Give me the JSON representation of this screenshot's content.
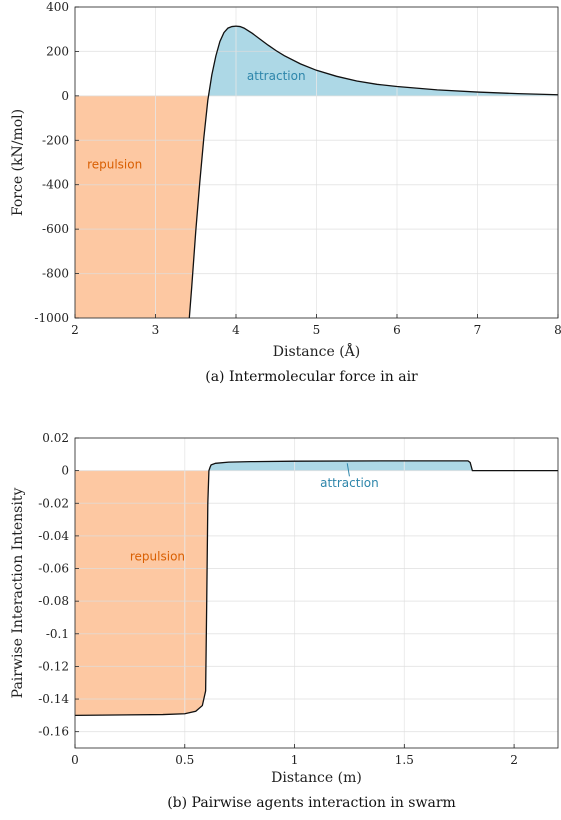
{
  "colors": {
    "repulsion_fill": "#fdc8a2",
    "attraction_fill": "#add8e6",
    "repulsion_text": "#d95f02",
    "attraction_text": "#2e86ab",
    "curve": "#111111",
    "grid": "#dddddd"
  },
  "chart_data": [
    {
      "type": "area",
      "caption": "(a) Intermolecular force in air",
      "xlabel": "Distance (Å)",
      "ylabel": "Force (kN/mol)",
      "xlim": [
        2,
        8
      ],
      "ylim": [
        -1000,
        400
      ],
      "xticks": [
        2,
        3,
        4,
        5,
        6,
        7,
        8
      ],
      "yticks": [
        400,
        200,
        0,
        -200,
        -400,
        -600,
        -800,
        -1000
      ],
      "grid": true,
      "regions": {
        "repulsion": "repulsion",
        "attraction": "attraction"
      },
      "series": [
        {
          "x": [
            3.42,
            3.45,
            3.5,
            3.55,
            3.6,
            3.65,
            3.7,
            3.75,
            3.8,
            3.85,
            3.9,
            3.95,
            4.0,
            4.05,
            4.1,
            4.2,
            4.3,
            4.4,
            4.5,
            4.6,
            4.8,
            5.0,
            5.25,
            5.5,
            5.75,
            6.0,
            6.5,
            7.0,
            7.5,
            8.0
          ],
          "y": [
            -1000,
            -860,
            -610,
            -390,
            -190,
            -20,
            95,
            180,
            245,
            285,
            305,
            312,
            314,
            312,
            305,
            282,
            255,
            228,
            203,
            181,
            144,
            115,
            88,
            67,
            52,
            42,
            27,
            17,
            10,
            5
          ]
        }
      ]
    },
    {
      "type": "area",
      "caption": "(b) Pairwise agents interaction in swarm",
      "xlabel": "Distance (m)",
      "ylabel": "Pairwise Interaction Intensity",
      "xlim": [
        0,
        2.2
      ],
      "ylim": [
        -0.17,
        0.02
      ],
      "xticks": [
        0,
        0.5,
        1,
        1.5,
        2
      ],
      "yticks": [
        0.02,
        0,
        -0.02,
        -0.04,
        -0.06,
        -0.08,
        -0.1,
        -0.12,
        -0.14,
        -0.16
      ],
      "grid": true,
      "regions": {
        "repulsion": "repulsion",
        "attraction": "attraction"
      },
      "series": [
        {
          "x": [
            0,
            0.4,
            0.5,
            0.55,
            0.58,
            0.595,
            0.6,
            0.605,
            0.61,
            0.615,
            0.62,
            0.64,
            0.7,
            0.8,
            1.0,
            1.5,
            1.79,
            1.8,
            1.81,
            1.85,
            2.2
          ],
          "y": [
            -0.15,
            -0.1495,
            -0.149,
            -0.1475,
            -0.144,
            -0.135,
            -0.08,
            -0.02,
            0.0,
            0.002,
            0.0035,
            0.0045,
            0.0052,
            0.0055,
            0.0058,
            0.006,
            0.006,
            0.005,
            0.0,
            0.0,
            0.0
          ]
        }
      ]
    }
  ]
}
